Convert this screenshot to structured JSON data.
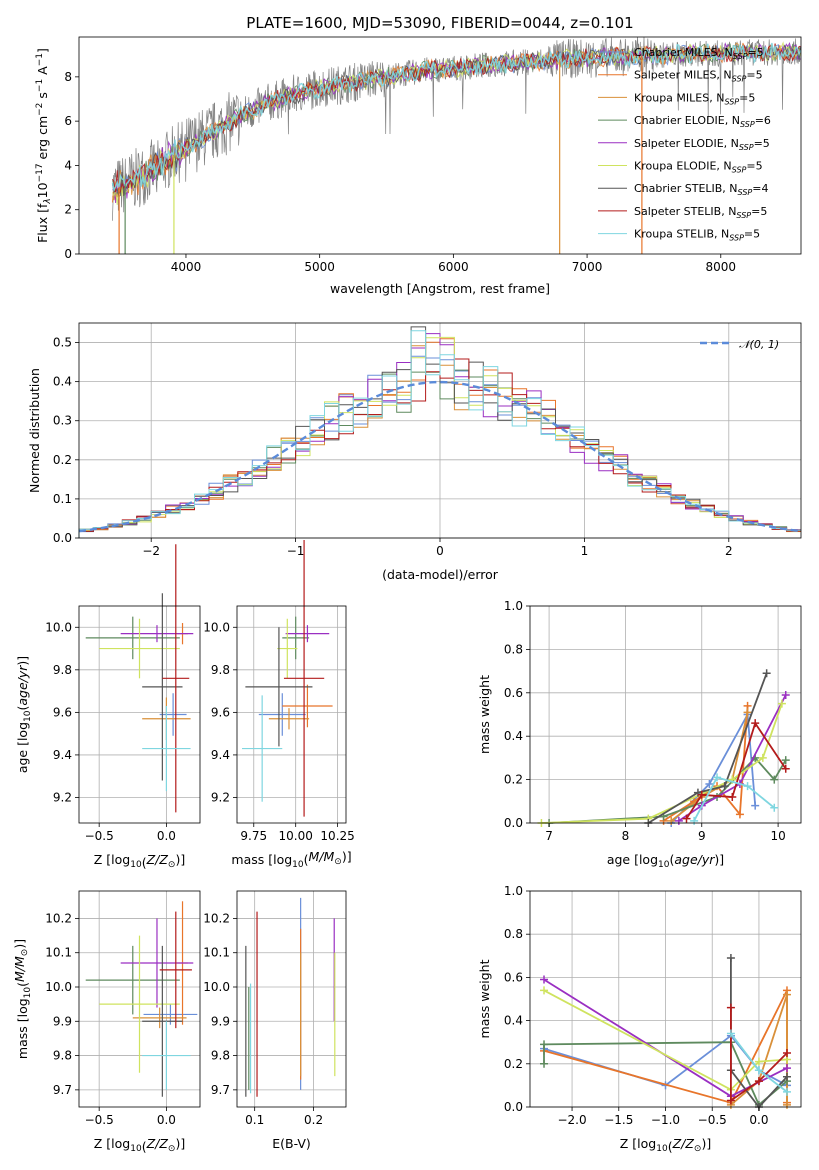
{
  "colors": {
    "Chabrier MILES": "#6a8fd9",
    "Salpeter MILES": "#e8752a",
    "Kroupa MILES": "#d9903a",
    "Chabrier ELODIE": "#5e8a5e",
    "Salpeter ELODIE": "#9a2fc2",
    "Kroupa ELODIE": "#cfe35f",
    "Chabrier STELIB": "#555555",
    "Salpeter STELIB": "#b31b1b",
    "Kroupa STELIB": "#7fd6e0"
  },
  "chart_data": [
    {
      "id": "spectrum",
      "type": "line",
      "title": "PLATE=1600, MJD=53090, FIBERID=0044, z=0.101",
      "xlabel": "wavelength [Angstrom, rest frame]",
      "ylabel": "Flux [f_λ 10^-17 erg cm^-2 s^-1 A^-1]",
      "ylabel_parts": {
        "base": "Flux [f",
        "sub": "λ",
        "mid": "10",
        "sup1": "−17",
        "mid2": " erg cm",
        "sup2": "−2",
        "mid3": " s",
        "sup3": "−1",
        "mid4": " A",
        "sup4": "−1",
        "end": "]"
      },
      "xlim": [
        3200,
        8600
      ],
      "ylim": [
        0,
        9.8
      ],
      "xticks": [
        4000,
        5000,
        6000,
        7000,
        8000
      ],
      "yticks": [
        0,
        2,
        4,
        6,
        8
      ],
      "grid": false,
      "legend_position": "top-right",
      "data_color": "#808080",
      "continuum": [
        [
          3450,
          2.9
        ],
        [
          3600,
          3.3
        ],
        [
          3800,
          4.0
        ],
        [
          4000,
          4.8
        ],
        [
          4200,
          5.5
        ],
        [
          4400,
          6.2
        ],
        [
          4600,
          6.8
        ],
        [
          4800,
          7.2
        ],
        [
          5000,
          7.5
        ],
        [
          5200,
          7.7
        ],
        [
          5400,
          7.9
        ],
        [
          5600,
          8.1
        ],
        [
          5800,
          8.3
        ],
        [
          6000,
          8.4
        ],
        [
          6200,
          8.5
        ],
        [
          6400,
          8.6
        ],
        [
          6600,
          8.7
        ],
        [
          6800,
          8.8
        ],
        [
          7000,
          8.85
        ],
        [
          7200,
          8.9
        ],
        [
          7400,
          8.95
        ],
        [
          7600,
          9.0
        ],
        [
          7800,
          9.05
        ],
        [
          8000,
          9.05
        ],
        [
          8200,
          9.1
        ],
        [
          8400,
          9.1
        ],
        [
          8600,
          9.15
        ]
      ],
      "legend": [
        {
          "name": "Chabrier MILES",
          "n": "5"
        },
        {
          "name": "Salpeter MILES",
          "n": "5"
        },
        {
          "name": "Kroupa MILES",
          "n": "5"
        },
        {
          "name": "Chabrier ELODIE",
          "n": "6"
        },
        {
          "name": "Salpeter ELODIE",
          "n": "5"
        },
        {
          "name": "Kroupa ELODIE",
          "n": "5"
        },
        {
          "name": "Chabrier STELIB",
          "n": "4"
        },
        {
          "name": "Salpeter STELIB",
          "n": "5"
        },
        {
          "name": "Kroupa STELIB",
          "n": "5"
        }
      ],
      "legend_n_label": "N",
      "legend_n_sub": "SSP"
    },
    {
      "id": "residuals",
      "type": "histogram",
      "xlabel": "(data-model)/error",
      "ylabel": "Normed distribution",
      "xlim": [
        -2.5,
        2.5
      ],
      "ylim": [
        0,
        0.55
      ],
      "xticks": [
        -2,
        -1,
        0,
        1,
        2
      ],
      "yticks": [
        0,
        0.1,
        0.2,
        0.3,
        0.4,
        0.5
      ],
      "grid": true,
      "bin_width": 0.1,
      "legend": "𝒩(0, 1)",
      "legend_position": "top-right",
      "gaussian": {
        "mu": 0,
        "sigma": 1,
        "color": "#5b8bd9"
      }
    },
    {
      "id": "age-vs-Z",
      "type": "errorbar",
      "xlabel": "Z [log10(Z/Z⊙)]",
      "ylabel": "age [log10(age/yr)]",
      "xlim": [
        -0.65,
        0.25
      ],
      "ylim": [
        9.08,
        10.1
      ],
      "xticks": [
        -0.5,
        0.0
      ],
      "yticks": [
        9.2,
        9.4,
        9.6,
        9.8,
        10.0
      ],
      "grid": true,
      "points": [
        {
          "model": "Chabrier MILES",
          "x": 0.05,
          "xerr": 0.1,
          "y": 9.59,
          "yerr": 0.1
        },
        {
          "model": "Salpeter MILES",
          "x": 0.12,
          "xerr": 0.04,
          "y": 9.97,
          "yerr": 0.05
        },
        {
          "model": "Kroupa MILES",
          "x": 0.0,
          "xerr": 0.18,
          "y": 9.57,
          "yerr": 0.1
        },
        {
          "model": "Chabrier ELODIE",
          "x": -0.25,
          "xerr": 0.35,
          "y": 9.95,
          "yerr": 0.1
        },
        {
          "model": "Salpeter ELODIE",
          "x": -0.07,
          "xerr": 0.27,
          "y": 9.97,
          "yerr": 0.04
        },
        {
          "model": "Kroupa ELODIE",
          "x": -0.2,
          "xerr": 0.3,
          "y": 9.9,
          "yerr": 0.14
        },
        {
          "model": "Chabrier STELIB",
          "x": -0.03,
          "xerr": 0.15,
          "y": 9.72,
          "yerr": 0.44
        },
        {
          "model": "Salpeter STELIB",
          "x": 0.07,
          "xerr": 0.1,
          "y": 9.76,
          "yerr": 0.63
        },
        {
          "model": "Kroupa STELIB",
          "x": 0.0,
          "xerr": 0.18,
          "y": 9.43,
          "yerr": 0.2
        }
      ]
    },
    {
      "id": "age-vs-mass",
      "type": "errorbar",
      "xlabel": "mass [log10(M/M⊙)]",
      "ylabel": "",
      "xlim": [
        9.65,
        10.3
      ],
      "ylim": [
        9.08,
        10.1
      ],
      "xticks": [
        9.75,
        10.0,
        10.25
      ],
      "yticks": [
        9.2,
        9.4,
        9.6,
        9.8,
        10.0
      ],
      "grid": true,
      "points": [
        {
          "model": "Chabrier MILES",
          "x": 9.92,
          "xerr": 0.14,
          "y": 9.59,
          "yerr": 0.1
        },
        {
          "model": "Salpeter MILES",
          "x": 10.07,
          "xerr": 0.15,
          "y": 9.63,
          "yerr": 0.1
        },
        {
          "model": "Kroupa MILES",
          "x": 9.96,
          "xerr": 0.12,
          "y": 9.57,
          "yerr": 0.05
        },
        {
          "model": "Chabrier ELODIE",
          "x": 10.0,
          "xerr": 0.08,
          "y": 9.95,
          "yerr": 0.1
        },
        {
          "model": "Salpeter ELODIE",
          "x": 10.07,
          "xerr": 0.13,
          "y": 9.97,
          "yerr": 0.04
        },
        {
          "model": "Kroupa ELODIE",
          "x": 9.95,
          "xerr": 0.06,
          "y": 9.9,
          "yerr": 0.14
        },
        {
          "model": "Chabrier STELIB",
          "x": 9.9,
          "xerr": 0.2,
          "y": 9.72,
          "yerr": 0.28
        },
        {
          "model": "Salpeter STELIB",
          "x": 10.05,
          "xerr": 0.12,
          "y": 9.76,
          "yerr": 0.65
        },
        {
          "model": "Kroupa STELIB",
          "x": 9.8,
          "xerr": 0.12,
          "y": 9.43,
          "yerr": 0.25
        }
      ]
    },
    {
      "id": "weight-vs-age",
      "type": "line",
      "xlabel": "age [log10(age/yr)]",
      "ylabel": "mass weight",
      "xlim": [
        6.75,
        10.3
      ],
      "ylim": [
        0,
        1.0
      ],
      "xticks": [
        7,
        8,
        9,
        10
      ],
      "yticks": [
        0.0,
        0.2,
        0.4,
        0.6,
        0.8,
        1.0
      ],
      "grid": true,
      "series": [
        {
          "model": "Chabrier MILES",
          "x": [
            8.6,
            9.1,
            9.6,
            9.7
          ],
          "y": [
            0.0,
            0.18,
            0.5,
            0.08
          ]
        },
        {
          "model": "Salpeter MILES",
          "x": [
            8.5,
            8.9,
            9.2,
            9.5,
            9.6
          ],
          "y": [
            0.01,
            0.1,
            0.17,
            0.04,
            0.54
          ]
        },
        {
          "model": "Kroupa MILES",
          "x": [
            8.6,
            9.0,
            9.4,
            9.6
          ],
          "y": [
            0.01,
            0.12,
            0.2,
            0.51
          ]
        },
        {
          "model": "Chabrier ELODIE",
          "x": [
            7.0,
            8.5,
            9.2,
            9.7,
            9.95,
            10.1
          ],
          "y": [
            0.0,
            0.03,
            0.12,
            0.3,
            0.2,
            0.29
          ]
        },
        {
          "model": "Salpeter ELODIE",
          "x": [
            8.7,
            9.0,
            9.5,
            10.1
          ],
          "y": [
            0.01,
            0.08,
            0.18,
            0.59
          ]
        },
        {
          "model": "Kroupa ELODIE",
          "x": [
            6.9,
            8.3,
            9.4,
            9.8,
            10.05
          ],
          "y": [
            0.0,
            0.02,
            0.2,
            0.3,
            0.55
          ]
        },
        {
          "model": "Chabrier STELIB",
          "x": [
            8.3,
            8.95,
            9.3,
            9.85
          ],
          "y": [
            0.0,
            0.14,
            0.17,
            0.69
          ]
        },
        {
          "model": "Salpeter STELIB",
          "x": [
            8.8,
            9.0,
            9.4,
            9.7,
            10.1
          ],
          "y": [
            0.02,
            0.13,
            0.12,
            0.46,
            0.25
          ]
        },
        {
          "model": "Kroupa STELIB",
          "x": [
            8.9,
            9.2,
            9.6,
            9.95
          ],
          "y": [
            0.01,
            0.21,
            0.17,
            0.07
          ]
        }
      ]
    },
    {
      "id": "mass-vs-Z",
      "type": "errorbar",
      "xlabel": "Z [log10(Z/Z⊙)]",
      "ylabel": "mass [log10(M/M⊙)]",
      "xlim": [
        -0.65,
        0.25
      ],
      "ylim": [
        9.65,
        10.28
      ],
      "xticks": [
        -0.5,
        0.0
      ],
      "yticks": [
        9.7,
        9.8,
        9.9,
        10.0,
        10.1,
        10.2
      ],
      "grid": true,
      "points": [
        {
          "model": "Chabrier MILES",
          "x": 0.03,
          "xerr": 0.2,
          "y": 9.92,
          "yerr": 0.03
        },
        {
          "model": "Salpeter MILES",
          "x": 0.12,
          "xerr": 0.04,
          "y": 10.07,
          "yerr": 0.18
        },
        {
          "model": "Kroupa MILES",
          "x": -0.05,
          "xerr": 0.2,
          "y": 9.91,
          "yerr": 0.03
        },
        {
          "model": "Chabrier ELODIE",
          "x": -0.25,
          "xerr": 0.35,
          "y": 10.02,
          "yerr": 0.1
        },
        {
          "model": "Salpeter ELODIE",
          "x": -0.07,
          "xerr": 0.27,
          "y": 10.07,
          "yerr": 0.13
        },
        {
          "model": "Kroupa ELODIE",
          "x": -0.2,
          "xerr": 0.3,
          "y": 9.95,
          "yerr": 0.2
        },
        {
          "model": "Chabrier STELIB",
          "x": -0.03,
          "xerr": 0.15,
          "y": 9.9,
          "yerr": 0.22
        },
        {
          "model": "Salpeter STELIB",
          "x": 0.07,
          "xerr": 0.12,
          "y": 10.05,
          "yerr": 0.17
        },
        {
          "model": "Kroupa STELIB",
          "x": 0.0,
          "xerr": 0.18,
          "y": 9.8,
          "yerr": 0.1
        }
      ]
    },
    {
      "id": "mass-vs-EBV",
      "type": "errorbar",
      "xlabel": "E(B-V)",
      "ylabel": "",
      "xlim": [
        0.07,
        0.255
      ],
      "ylim": [
        9.65,
        10.28
      ],
      "xticks": [
        0.1,
        0.2
      ],
      "yticks": [
        9.7,
        9.8,
        9.9,
        10.0,
        10.1,
        10.2
      ],
      "grid": true,
      "points": [
        {
          "model": "Chabrier MILES",
          "x": 0.178,
          "xerr": 0,
          "y": 9.98,
          "yerr": 0.28
        },
        {
          "model": "Salpeter MILES",
          "x": 0.178,
          "xerr": 0,
          "y": 9.95,
          "yerr": 0.22
        },
        {
          "model": "Kroupa MILES",
          "x": 0.178,
          "xerr": 0,
          "y": 9.92,
          "yerr": 0.18
        },
        {
          "model": "Chabrier ELODIE",
          "x": 0.09,
          "xerr": 0,
          "y": 9.85,
          "yerr": 0.15
        },
        {
          "model": "Salpeter ELODIE",
          "x": 0.235,
          "xerr": 0,
          "y": 10.05,
          "yerr": 0.15
        },
        {
          "model": "Kroupa ELODIE",
          "x": 0.236,
          "xerr": 0,
          "y": 9.92,
          "yerr": 0.18
        },
        {
          "model": "Chabrier STELIB",
          "x": 0.085,
          "xerr": 0,
          "y": 9.9,
          "yerr": 0.22
        },
        {
          "model": "Salpeter STELIB",
          "x": 0.104,
          "xerr": 0,
          "y": 9.95,
          "yerr": 0.27
        },
        {
          "model": "Kroupa STELIB",
          "x": 0.093,
          "xerr": 0,
          "y": 9.85,
          "yerr": 0.16
        }
      ]
    },
    {
      "id": "weight-vs-Z",
      "type": "line",
      "xlabel": "Z [log10(Z/Z⊙)]",
      "ylabel": "mass weight",
      "xlim": [
        -2.45,
        0.45
      ],
      "ylim": [
        0,
        1.0
      ],
      "xticks": [
        -2.0,
        -1.5,
        -1.0,
        -0.5,
        0.0
      ],
      "yticks": [
        0.0,
        0.2,
        0.4,
        0.6,
        0.8,
        1.0
      ],
      "grid": true,
      "series": [
        {
          "model": "Chabrier MILES",
          "x": [
            -2.3,
            -1.0,
            -0.3,
            0.0,
            0.3
          ],
          "y": [
            0.27,
            0.1,
            0.33,
            0.17,
            0.1
          ]
        },
        {
          "model": "Salpeter MILES",
          "x": [
            -2.3,
            -0.3,
            0.3,
            0.3
          ],
          "y": [
            0.26,
            0.02,
            0.54,
            0.02
          ]
        },
        {
          "model": "Kroupa MILES",
          "x": [
            -0.3,
            0.0,
            0.3,
            0.3
          ],
          "y": [
            0.01,
            0.12,
            0.52,
            0.01
          ]
        },
        {
          "model": "Chabrier ELODIE",
          "x": [
            -2.3,
            -2.3,
            -0.3,
            0.0,
            0.3
          ],
          "y": [
            0.2,
            0.29,
            0.3,
            0.01,
            0.12
          ]
        },
        {
          "model": "Salpeter ELODIE",
          "x": [
            -2.3,
            -0.3,
            0.3
          ],
          "y": [
            0.59,
            0.05,
            0.18
          ]
        },
        {
          "model": "Kroupa ELODIE",
          "x": [
            -2.3,
            -0.3,
            0.0,
            0.3
          ],
          "y": [
            0.54,
            0.08,
            0.21,
            0.22
          ]
        },
        {
          "model": "Chabrier STELIB",
          "x": [
            -0.3,
            -0.3,
            0.0,
            0.3
          ],
          "y": [
            0.69,
            0.17,
            0.0,
            0.14
          ]
        },
        {
          "model": "Salpeter STELIB",
          "x": [
            -0.3,
            -0.3,
            0.0,
            0.3
          ],
          "y": [
            0.46,
            0.03,
            0.12,
            0.25
          ]
        },
        {
          "model": "Kroupa STELIB",
          "x": [
            -0.3,
            0.0,
            0.3
          ],
          "y": [
            0.34,
            0.17,
            0.07
          ]
        }
      ]
    }
  ]
}
